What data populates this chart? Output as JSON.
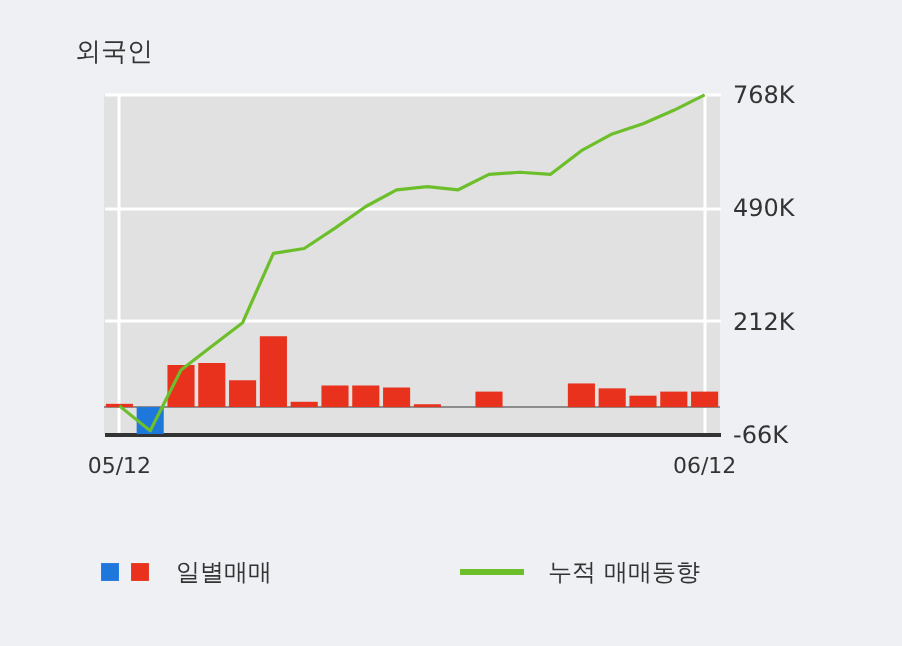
{
  "chart_data": {
    "type": "bar",
    "title": "외국인",
    "categories": [
      "05/12",
      null,
      null,
      null,
      null,
      null,
      null,
      null,
      null,
      null,
      null,
      null,
      null,
      null,
      null,
      null,
      null,
      null,
      null,
      "06/12"
    ],
    "series": [
      {
        "name": "일별매매",
        "colors": [
          "#e8321e",
          "#1e78dc",
          "#e8321e",
          "#e8321e",
          "#e8321e",
          "#e8321e",
          "#e8321e",
          "#e8321e",
          "#e8321e",
          "#e8321e",
          "#e8321e",
          "#e8321e",
          "#e8321e",
          "#e8321e",
          "#e8321e",
          "#e8321e",
          "#e8321e",
          "#e8321e",
          "#e8321e",
          "#e8321e"
        ],
        "values": [
          8000,
          -66000,
          103000,
          108000,
          66000,
          174000,
          13000,
          53000,
          53000,
          48000,
          7000,
          0,
          38000,
          0,
          0,
          58000,
          46000,
          28000,
          38000,
          38000
        ]
      },
      {
        "name": "누적 매매동향",
        "type": "line",
        "color": "#6cbf2a",
        "values": [
          3000,
          -58000,
          91000,
          149000,
          207000,
          377000,
          389000,
          439000,
          492000,
          533000,
          541000,
          533000,
          571000,
          576000,
          571000,
          629000,
          670000,
          695000,
          728000,
          766000
        ]
      }
    ],
    "ylim": [
      -66000,
      768000
    ],
    "yticks": [
      {
        "value": -66000,
        "label": "-66K"
      },
      {
        "value": 212000,
        "label": "212K"
      },
      {
        "value": 490000,
        "label": "490K"
      },
      {
        "value": 768000,
        "label": "768K"
      }
    ],
    "ref_lines": [
      {
        "axis": "y",
        "value": 0,
        "color": "#8c8c8c"
      }
    ],
    "grid": true,
    "legend": "bottom",
    "marker": "none",
    "line_style": "solid"
  }
}
